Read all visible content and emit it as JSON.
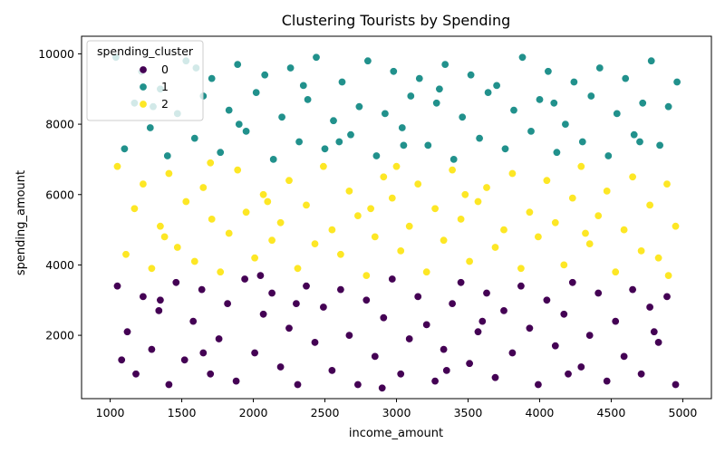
{
  "chart_data": {
    "type": "scatter",
    "title": "Clustering Tourists by Spending",
    "xlabel": "income_amount",
    "ylabel": "spending_amount",
    "xlim": [
      800,
      5200
    ],
    "ylim": [
      200,
      10500
    ],
    "xticks": [
      1000,
      1500,
      2000,
      2500,
      3000,
      3500,
      4000,
      4500,
      5000
    ],
    "yticks": [
      2000,
      4000,
      6000,
      8000,
      10000
    ],
    "grid": false,
    "legend": {
      "title": "spending_cluster",
      "placement": "top-left"
    },
    "series": [
      {
        "name": "0",
        "color": "#440154",
        "points": [
          [
            1050,
            3400
          ],
          [
            1120,
            2100
          ],
          [
            1180,
            900
          ],
          [
            1230,
            3100
          ],
          [
            1290,
            1600
          ],
          [
            1340,
            2700
          ],
          [
            1410,
            600
          ],
          [
            1460,
            3500
          ],
          [
            1520,
            1300
          ],
          [
            1580,
            2400
          ],
          [
            1640,
            3300
          ],
          [
            1700,
            900
          ],
          [
            1760,
            1900
          ],
          [
            1820,
            2900
          ],
          [
            1880,
            700
          ],
          [
            1940,
            3600
          ],
          [
            2010,
            1500
          ],
          [
            2070,
            2600
          ],
          [
            2130,
            3200
          ],
          [
            2190,
            1100
          ],
          [
            2250,
            2200
          ],
          [
            2310,
            600
          ],
          [
            2370,
            3400
          ],
          [
            2430,
            1800
          ],
          [
            2490,
            2800
          ],
          [
            2550,
            1000
          ],
          [
            2610,
            3300
          ],
          [
            2670,
            2000
          ],
          [
            2730,
            600
          ],
          [
            2790,
            3000
          ],
          [
            2850,
            1400
          ],
          [
            2910,
            2500
          ],
          [
            2970,
            3600
          ],
          [
            3030,
            900
          ],
          [
            3090,
            1900
          ],
          [
            3150,
            3100
          ],
          [
            3210,
            2300
          ],
          [
            3270,
            700
          ],
          [
            3330,
            1600
          ],
          [
            3390,
            2900
          ],
          [
            3450,
            3500
          ],
          [
            3510,
            1200
          ],
          [
            3570,
            2100
          ],
          [
            3630,
            3200
          ],
          [
            3690,
            800
          ],
          [
            3750,
            2700
          ],
          [
            3810,
            1500
          ],
          [
            3870,
            3400
          ],
          [
            3930,
            2200
          ],
          [
            3990,
            600
          ],
          [
            4050,
            3000
          ],
          [
            4110,
            1700
          ],
          [
            4170,
            2600
          ],
          [
            4230,
            3500
          ],
          [
            4290,
            1100
          ],
          [
            4350,
            2000
          ],
          [
            4410,
            3200
          ],
          [
            4470,
            700
          ],
          [
            4530,
            2400
          ],
          [
            4590,
            1400
          ],
          [
            4650,
            3300
          ],
          [
            4710,
            900
          ],
          [
            4770,
            2800
          ],
          [
            4830,
            1800
          ],
          [
            4890,
            3100
          ],
          [
            4950,
            600
          ],
          [
            1080,
            1300
          ],
          [
            1650,
            1500
          ],
          [
            2300,
            2900
          ],
          [
            2900,
            500
          ],
          [
            3600,
            2400
          ],
          [
            4200,
            900
          ],
          [
            4800,
            2100
          ],
          [
            1350,
            3000
          ],
          [
            2050,
            3700
          ],
          [
            3350,
            1000
          ]
        ]
      },
      {
        "name": "1",
        "color": "#21918c",
        "points": [
          [
            1040,
            9900
          ],
          [
            1100,
            7300
          ],
          [
            1170,
            8600
          ],
          [
            1220,
            9500
          ],
          [
            1280,
            7900
          ],
          [
            1350,
            9000
          ],
          [
            1400,
            7100
          ],
          [
            1470,
            8300
          ],
          [
            1530,
            9800
          ],
          [
            1590,
            7600
          ],
          [
            1650,
            8800
          ],
          [
            1710,
            9300
          ],
          [
            1770,
            7200
          ],
          [
            1830,
            8400
          ],
          [
            1890,
            9700
          ],
          [
            1950,
            7800
          ],
          [
            2020,
            8900
          ],
          [
            2080,
            9400
          ],
          [
            2140,
            7000
          ],
          [
            2200,
            8200
          ],
          [
            2260,
            9600
          ],
          [
            2320,
            7500
          ],
          [
            2380,
            8700
          ],
          [
            2440,
            9900
          ],
          [
            2500,
            7300
          ],
          [
            2560,
            8100
          ],
          [
            2620,
            9200
          ],
          [
            2680,
            7700
          ],
          [
            2740,
            8500
          ],
          [
            2800,
            9800
          ],
          [
            2860,
            7100
          ],
          [
            2920,
            8300
          ],
          [
            2980,
            9500
          ],
          [
            3040,
            7900
          ],
          [
            3100,
            8800
          ],
          [
            3160,
            9300
          ],
          [
            3220,
            7400
          ],
          [
            3280,
            8600
          ],
          [
            3340,
            9700
          ],
          [
            3400,
            7000
          ],
          [
            3460,
            8200
          ],
          [
            3520,
            9400
          ],
          [
            3580,
            7600
          ],
          [
            3640,
            8900
          ],
          [
            3700,
            9100
          ],
          [
            3760,
            7300
          ],
          [
            3820,
            8400
          ],
          [
            3880,
            9900
          ],
          [
            3940,
            7800
          ],
          [
            4000,
            8700
          ],
          [
            4060,
            9500
          ],
          [
            4120,
            7200
          ],
          [
            4180,
            8000
          ],
          [
            4240,
            9200
          ],
          [
            4300,
            7500
          ],
          [
            4360,
            8800
          ],
          [
            4420,
            9600
          ],
          [
            4480,
            7100
          ],
          [
            4540,
            8300
          ],
          [
            4600,
            9300
          ],
          [
            4660,
            7700
          ],
          [
            4720,
            8600
          ],
          [
            4780,
            9800
          ],
          [
            4840,
            7400
          ],
          [
            4900,
            8500
          ],
          [
            4960,
            9200
          ],
          [
            1300,
            8500
          ],
          [
            1900,
            8000
          ],
          [
            2600,
            7500
          ],
          [
            3300,
            9000
          ],
          [
            4100,
            8600
          ],
          [
            4700,
            7500
          ],
          [
            1600,
            9600
          ],
          [
            2350,
            9100
          ],
          [
            3050,
            7400
          ]
        ]
      },
      {
        "name": "2",
        "color": "#fde725",
        "points": [
          [
            1050,
            6800
          ],
          [
            1110,
            4300
          ],
          [
            1170,
            5600
          ],
          [
            1230,
            6300
          ],
          [
            1290,
            3900
          ],
          [
            1350,
            5100
          ],
          [
            1410,
            6600
          ],
          [
            1470,
            4500
          ],
          [
            1530,
            5800
          ],
          [
            1590,
            4100
          ],
          [
            1650,
            6200
          ],
          [
            1710,
            5300
          ],
          [
            1770,
            3800
          ],
          [
            1830,
            4900
          ],
          [
            1890,
            6700
          ],
          [
            1950,
            5500
          ],
          [
            2010,
            4200
          ],
          [
            2070,
            6000
          ],
          [
            2130,
            4700
          ],
          [
            2190,
            5200
          ],
          [
            2250,
            6400
          ],
          [
            2310,
            3900
          ],
          [
            2370,
            5700
          ],
          [
            2430,
            4600
          ],
          [
            2490,
            6800
          ],
          [
            2550,
            5000
          ],
          [
            2610,
            4300
          ],
          [
            2670,
            6100
          ],
          [
            2730,
            5400
          ],
          [
            2790,
            3700
          ],
          [
            2850,
            4800
          ],
          [
            2910,
            6500
          ],
          [
            2970,
            5900
          ],
          [
            3030,
            4400
          ],
          [
            3090,
            5100
          ],
          [
            3150,
            6300
          ],
          [
            3210,
            3800
          ],
          [
            3270,
            5600
          ],
          [
            3330,
            4700
          ],
          [
            3390,
            6700
          ],
          [
            3450,
            5300
          ],
          [
            3510,
            4100
          ],
          [
            3570,
            5800
          ],
          [
            3630,
            6200
          ],
          [
            3690,
            4500
          ],
          [
            3750,
            5000
          ],
          [
            3810,
            6600
          ],
          [
            3870,
            3900
          ],
          [
            3930,
            5500
          ],
          [
            3990,
            4800
          ],
          [
            4050,
            6400
          ],
          [
            4110,
            5200
          ],
          [
            4170,
            4000
          ],
          [
            4230,
            5900
          ],
          [
            4290,
            6800
          ],
          [
            4350,
            4600
          ],
          [
            4410,
            5400
          ],
          [
            4470,
            6100
          ],
          [
            4530,
            3800
          ],
          [
            4590,
            5000
          ],
          [
            4650,
            6500
          ],
          [
            4710,
            4400
          ],
          [
            4770,
            5700
          ],
          [
            4830,
            4200
          ],
          [
            4890,
            6300
          ],
          [
            4950,
            5100
          ],
          [
            1380,
            4800
          ],
          [
            2100,
            5800
          ],
          [
            2820,
            5600
          ],
          [
            3480,
            6000
          ],
          [
            4320,
            4900
          ],
          [
            4900,
            3700
          ],
          [
            1700,
            6900
          ],
          [
            3000,
            6800
          ]
        ]
      }
    ]
  }
}
